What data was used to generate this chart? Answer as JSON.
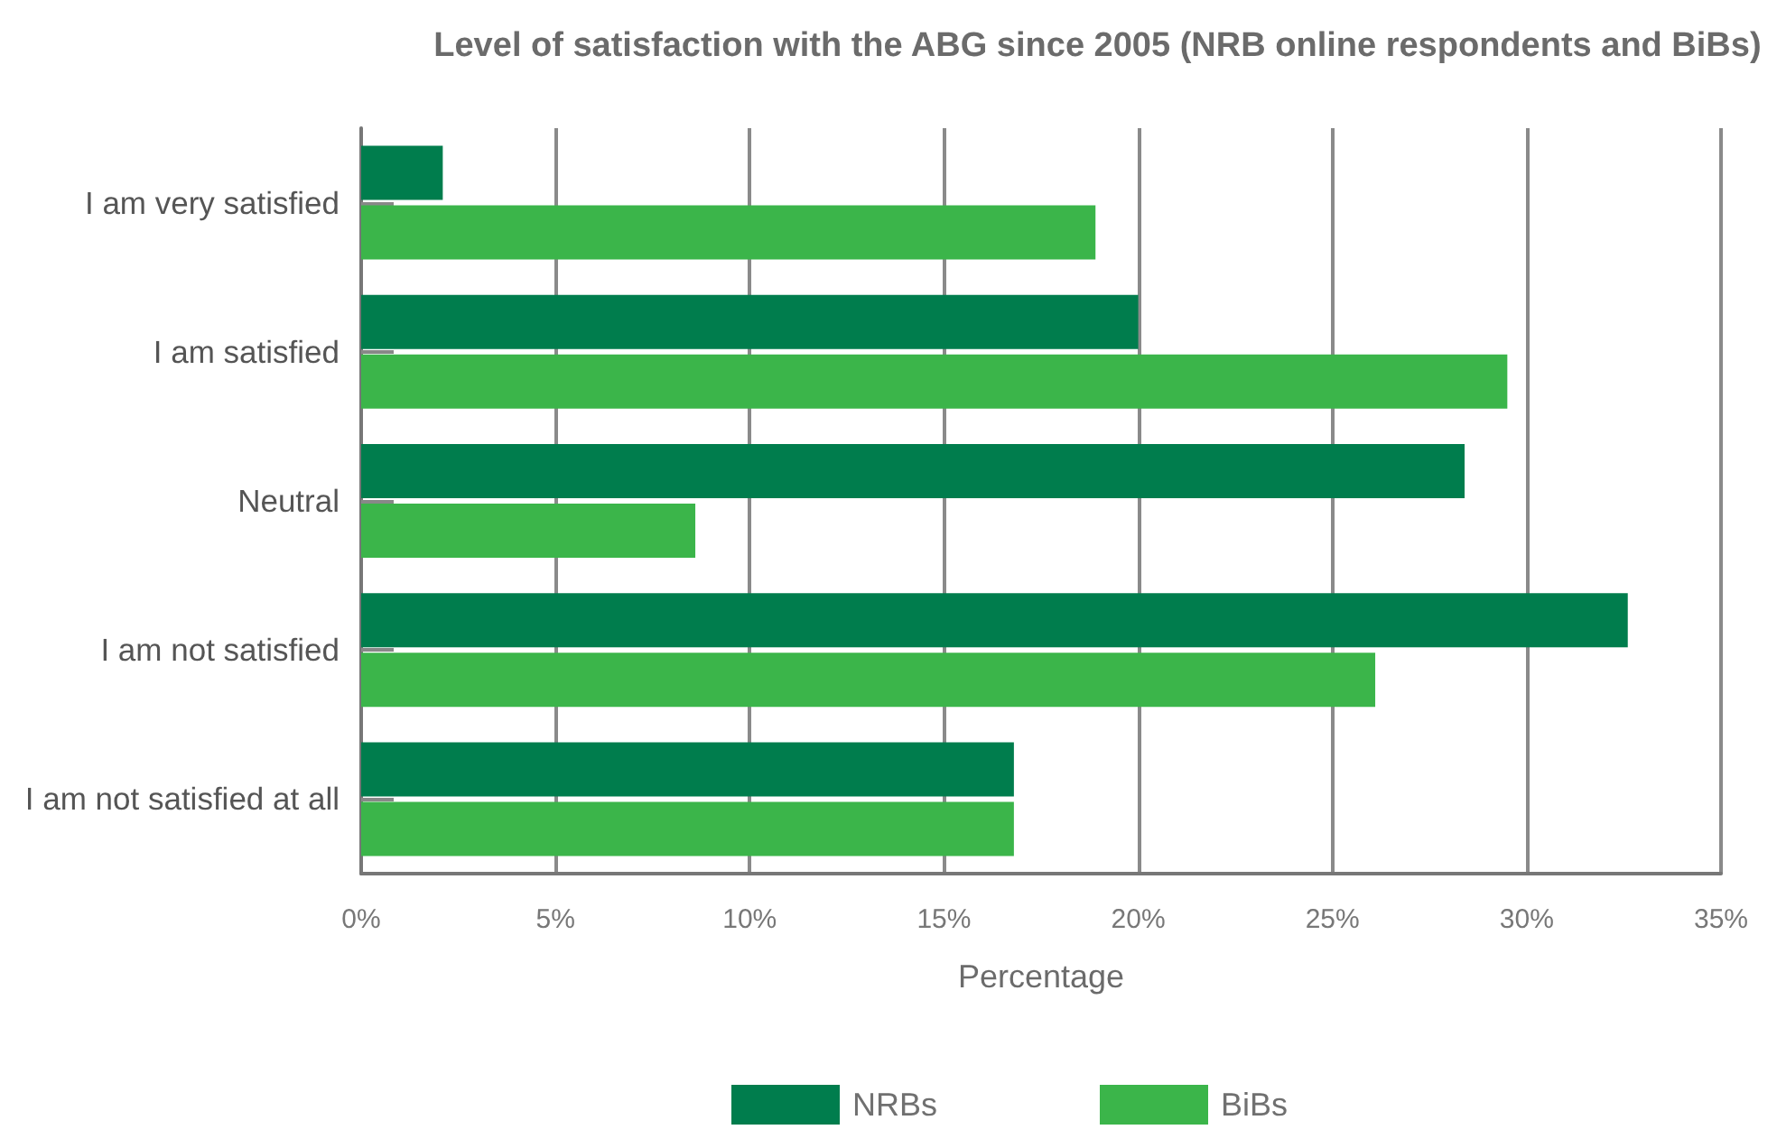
{
  "chart_data": {
    "type": "bar",
    "orientation": "horizontal",
    "title": "Level of satisfaction with the ABG since 2005 (NRB online respondents and BiBs)",
    "xlabel": "Percentage",
    "categories": [
      "I am very satisfied",
      "I am satisfied",
      "Neutral",
      "I am not satisfied",
      "I am not satisfied at all"
    ],
    "series": [
      {
        "name": "NRBs",
        "color": "#007d4d",
        "values": [
          2.1,
          20.0,
          28.4,
          32.6,
          16.8
        ]
      },
      {
        "name": "BiBs",
        "color": "#3bb54a",
        "values": [
          18.9,
          29.5,
          8.6,
          26.1,
          16.8
        ]
      }
    ],
    "xlim": [
      0,
      35
    ],
    "xticks": [
      {
        "value": 0,
        "label": "0%"
      },
      {
        "value": 5,
        "label": "5%"
      },
      {
        "value": 10,
        "label": "10%"
      },
      {
        "value": 15,
        "label": "15%"
      },
      {
        "value": 20,
        "label": "20%"
      },
      {
        "value": 25,
        "label": "25%"
      },
      {
        "value": 30,
        "label": "30%"
      },
      {
        "value": 35,
        "label": "35%"
      }
    ],
    "grid": "x",
    "legend": "bottom"
  }
}
